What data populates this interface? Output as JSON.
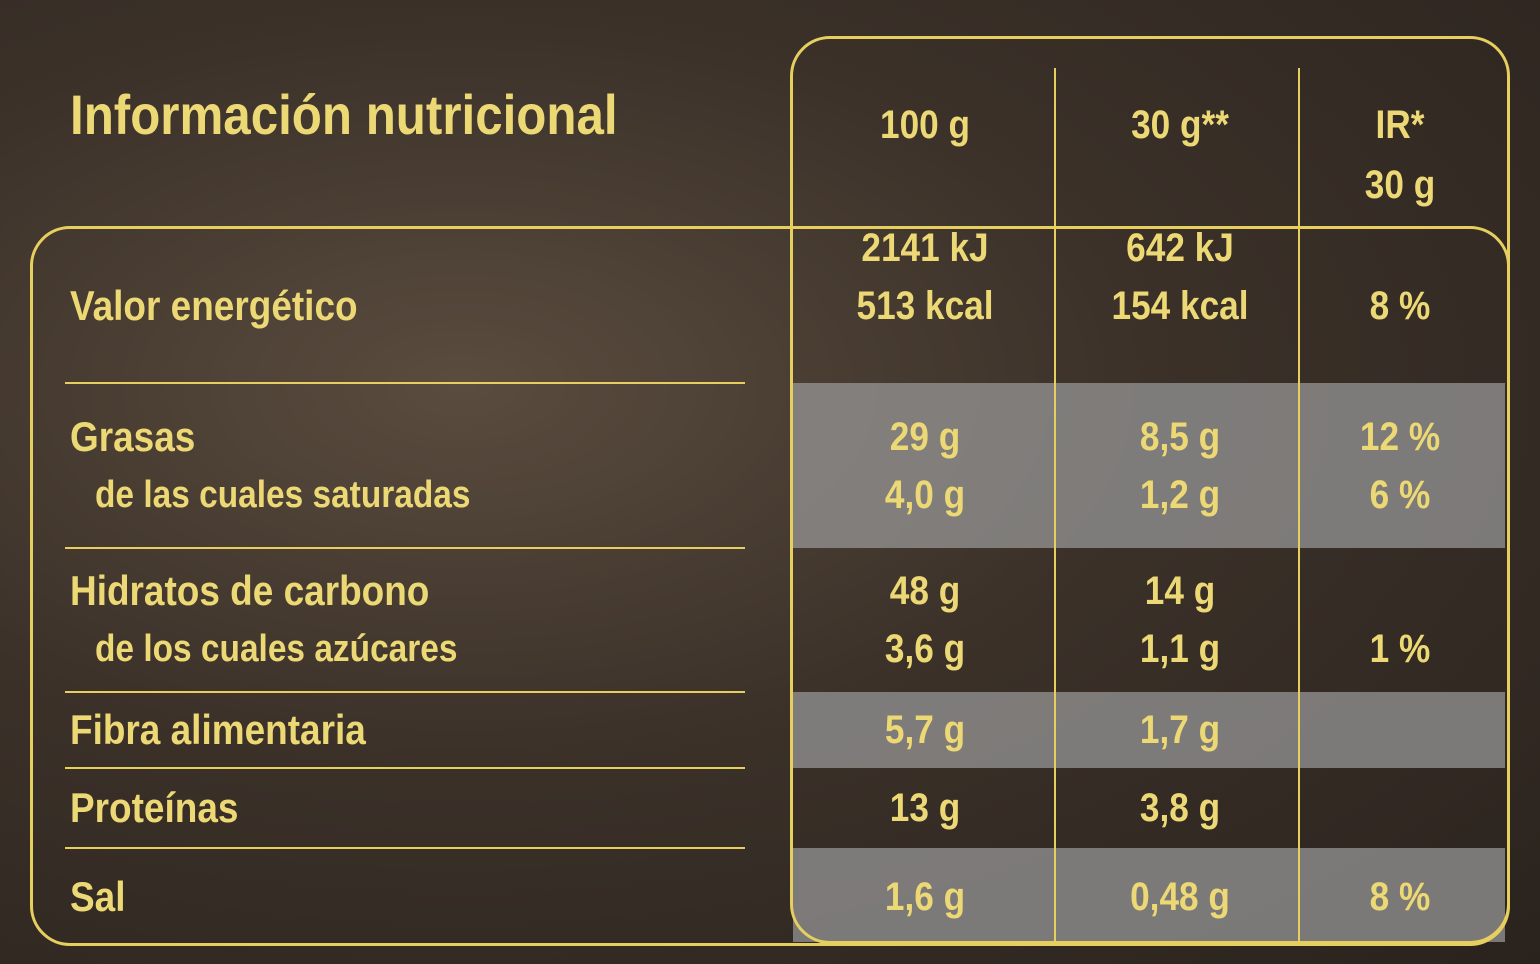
{
  "title": "Información nutricional",
  "table": {
    "header": [
      [
        "100 g"
      ],
      [
        "30 g**"
      ],
      [
        "IR*",
        "30 g"
      ]
    ],
    "rows": [
      {
        "label": [
          "Valor energético"
        ],
        "cells": [
          [
            "2141 kJ",
            "513 kcal"
          ],
          [
            "642 kJ",
            "154 kcal"
          ],
          [
            "8 %"
          ]
        ]
      },
      {
        "label": [
          "Grasas",
          "de las cuales saturadas"
        ],
        "cells": [
          [
            "29 g",
            "4,0 g"
          ],
          [
            "8,5 g",
            "1,2 g"
          ],
          [
            "12 %",
            "6 %"
          ]
        ]
      },
      {
        "label": [
          "Hidratos de carbono",
          "de los cuales azúcares"
        ],
        "cells": [
          [
            "48 g",
            "3,6 g"
          ],
          [
            "14 g",
            "1,1 g"
          ],
          [
            "1 %"
          ]
        ]
      },
      {
        "label": [
          "Fibra alimentaria"
        ],
        "cells": [
          [
            "5,7 g"
          ],
          [
            "1,7 g"
          ],
          []
        ]
      },
      {
        "label": [
          "Proteínas"
        ],
        "cells": [
          [
            "13 g"
          ],
          [
            "3,8 g"
          ],
          []
        ]
      },
      {
        "label": [
          "Sal"
        ],
        "cells": [
          [
            "1,6 g"
          ],
          [
            "0,48 g"
          ],
          [
            "8 %"
          ]
        ]
      }
    ]
  }
}
